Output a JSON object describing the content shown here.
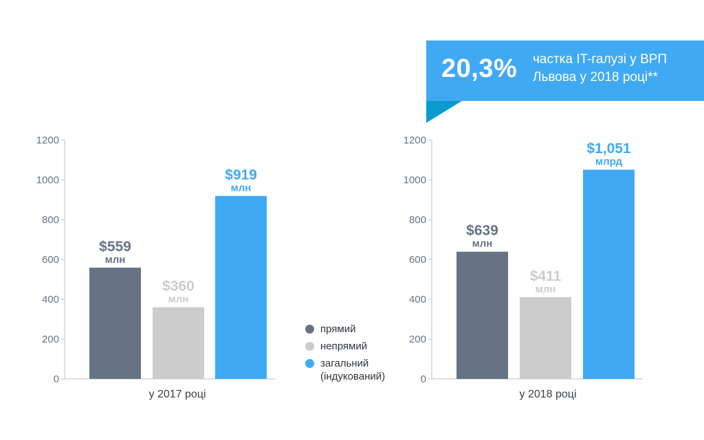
{
  "banner": {
    "value": "20,3%",
    "text": "частка IT-галузі у ВРП Львова у 2018 році**"
  },
  "colors": {
    "direct": "#677385",
    "indirect": "#cccccc",
    "total": "#40a9f4",
    "axis": "#b9c0c8",
    "banner_dark": "#0a9ccf"
  },
  "legend": [
    {
      "label": "прямий",
      "color": "#677385"
    },
    {
      "label": "непрямий",
      "color": "#cccccc"
    },
    {
      "label": "загальний (індукований)",
      "color": "#40a9f4"
    }
  ],
  "chart_data": [
    {
      "type": "bar",
      "xlabel": "у 2017 році",
      "yticks": [
        "0",
        "200",
        "400",
        "600",
        "800",
        "1000",
        "1200"
      ],
      "ylim": [
        0,
        1200
      ],
      "categories": [
        "прямий",
        "непрямий",
        "загальний (індукований)"
      ],
      "values": [
        559,
        360,
        919
      ],
      "value_labels": [
        "$559",
        "$360",
        "$919"
      ],
      "unit_labels": [
        "млн",
        "млн",
        "млн"
      ]
    },
    {
      "type": "bar",
      "xlabel": "у 2018 році",
      "yticks": [
        "0",
        "200",
        "400",
        "600",
        "800",
        "1000",
        "1200"
      ],
      "ylim": [
        0,
        1200
      ],
      "categories": [
        "прямий",
        "непрямий",
        "загальний (індукований)"
      ],
      "values": [
        639,
        411,
        1051
      ],
      "value_labels": [
        "$639",
        "$411",
        "$1,051"
      ],
      "unit_labels": [
        "млн",
        "млн",
        "млрд"
      ]
    }
  ]
}
